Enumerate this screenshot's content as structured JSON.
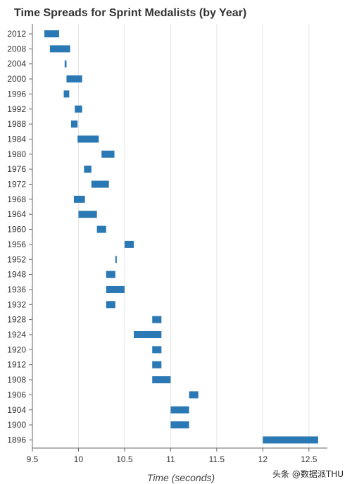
{
  "chart_data": {
    "type": "bar",
    "title": "Time Spreads for Sprint Medalists (by Year)",
    "xlabel": "Time (seconds)",
    "ylabel": "",
    "xlim": [
      9.5,
      12.7
    ],
    "xticks": [
      "9.5",
      "10",
      "10.5",
      "11",
      "11.5",
      "12",
      "12.5"
    ],
    "grid": "vertical",
    "color": "#2a78b4",
    "categories": [
      "2012",
      "2008",
      "2004",
      "2000",
      "1996",
      "1992",
      "1988",
      "1984",
      "1980",
      "1976",
      "1972",
      "1968",
      "1964",
      "1960",
      "1956",
      "1952",
      "1948",
      "1936",
      "1932",
      "1928",
      "1924",
      "1920",
      "1912",
      "1908",
      "1906",
      "1904",
      "1900",
      "1896"
    ],
    "ranges": [
      [
        9.63,
        9.79
      ],
      [
        9.69,
        9.91
      ],
      [
        9.85,
        9.87
      ],
      [
        9.87,
        10.04
      ],
      [
        9.84,
        9.9
      ],
      [
        9.96,
        10.04
      ],
      [
        9.92,
        9.99
      ],
      [
        9.99,
        10.22
      ],
      [
        10.25,
        10.39
      ],
      [
        10.06,
        10.14
      ],
      [
        10.14,
        10.33
      ],
      [
        9.95,
        10.07
      ],
      [
        10.0,
        10.2
      ],
      [
        10.2,
        10.3
      ],
      [
        10.5,
        10.6
      ],
      [
        10.4,
        10.4
      ],
      [
        10.3,
        10.4
      ],
      [
        10.3,
        10.5
      ],
      [
        10.3,
        10.4
      ],
      [
        10.8,
        10.9
      ],
      [
        10.6,
        10.9
      ],
      [
        10.8,
        10.9
      ],
      [
        10.8,
        10.9
      ],
      [
        10.8,
        11.0
      ],
      [
        11.2,
        11.3
      ],
      [
        11.0,
        11.2
      ],
      [
        11.0,
        11.2
      ],
      [
        12.0,
        12.6
      ]
    ]
  },
  "watermark": "头条 @数据派THU"
}
